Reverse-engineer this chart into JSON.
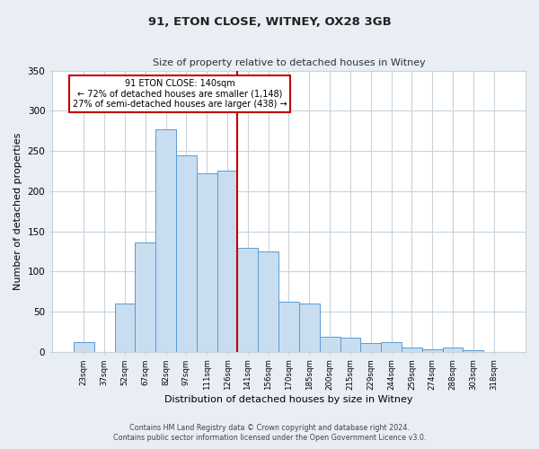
{
  "title": "91, ETON CLOSE, WITNEY, OX28 3GB",
  "subtitle": "Size of property relative to detached houses in Witney",
  "xlabel": "Distribution of detached houses by size in Witney",
  "ylabel": "Number of detached properties",
  "categories": [
    "23sqm",
    "37sqm",
    "52sqm",
    "67sqm",
    "82sqm",
    "97sqm",
    "111sqm",
    "126sqm",
    "141sqm",
    "156sqm",
    "170sqm",
    "185sqm",
    "200sqm",
    "215sqm",
    "229sqm",
    "244sqm",
    "259sqm",
    "274sqm",
    "288sqm",
    "303sqm",
    "318sqm"
  ],
  "values": [
    12,
    0,
    60,
    136,
    277,
    245,
    222,
    225,
    130,
    125,
    62,
    60,
    19,
    18,
    11,
    12,
    5,
    3,
    6,
    2,
    0
  ],
  "bar_color": "#c9ddf0",
  "bar_edge_color": "#5b9bd5",
  "vline_x_index": 7.5,
  "vline_color": "#c00000",
  "annotation_text_line1": "91 ETON CLOSE: 140sqm",
  "annotation_text_line2": "← 72% of detached houses are smaller (1,148)",
  "annotation_text_line3": "27% of semi-detached houses are larger (438) →",
  "annotation_box_color": "#c00000",
  "annotation_fill_color": "#ffffff",
  "ylim": [
    0,
    350
  ],
  "yticks": [
    0,
    50,
    100,
    150,
    200,
    250,
    300,
    350
  ],
  "footer_line1": "Contains HM Land Registry data © Crown copyright and database right 2024.",
  "footer_line2": "Contains public sector information licensed under the Open Government Licence v3.0.",
  "bg_color": "#e8eef4",
  "plot_bg_color": "#ffffff",
  "grid_color": "#c8d4de"
}
